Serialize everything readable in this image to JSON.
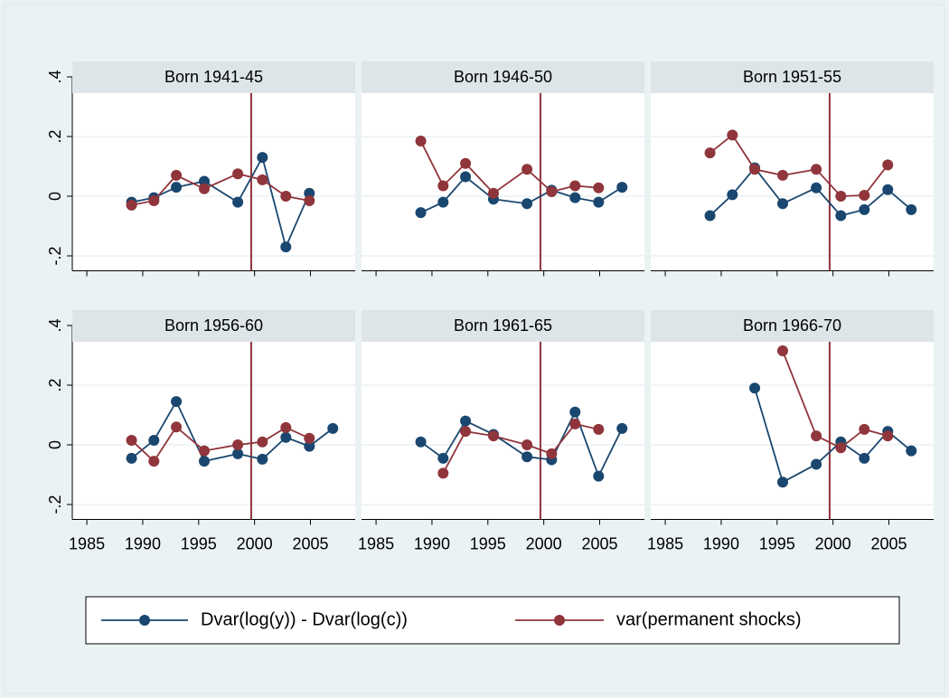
{
  "chart_data": [
    {
      "type": "line",
      "title": "Born 1941-45",
      "x": [
        1989,
        1991,
        1993,
        1995.5,
        1998.5,
        2000.7,
        2002.8,
        2004.9
      ],
      "series": [
        {
          "name": "Dvar(log(y)) - Dvar(log(c))",
          "color": "#1a476f",
          "values": [
            -0.02,
            -0.005,
            0.03,
            0.05,
            -0.02,
            0.13,
            -0.17,
            0.01
          ]
        },
        {
          "name": "var(permanent shocks)",
          "color": "#90353b",
          "values": [
            -0.03,
            -0.015,
            0.07,
            0.025,
            0.075,
            0.055,
            0.0,
            -0.015
          ]
        }
      ],
      "xlim": [
        1983.7,
        2009
      ],
      "ylim": [
        -0.25,
        0.4
      ],
      "xticks": [
        1985,
        1990,
        1995,
        2000,
        2005
      ],
      "yticks": [
        {
          "value": -0.2,
          "label": "-.2"
        },
        0,
        {
          "value": 0.2,
          "label": ".2"
        },
        {
          "value": 0.4,
          "label": ".4"
        }
      ],
      "xline": 1999.7,
      "grid": true
    },
    {
      "type": "line",
      "title": "Born 1946-50",
      "x": [
        1989,
        1991,
        1993,
        1995.5,
        1998.5,
        2000.7,
        2002.8,
        2004.9,
        2007
      ],
      "series": [
        {
          "name": "Dvar(log(y)) - Dvar(log(c))",
          "color": "#1a476f",
          "values": [
            -0.055,
            -0.02,
            0.065,
            -0.01,
            -0.025,
            0.02,
            -0.005,
            -0.02,
            0.03
          ]
        },
        {
          "name": "var(permanent shocks)",
          "color": "#90353b",
          "values": [
            0.185,
            0.035,
            0.11,
            0.01,
            0.09,
            0.015,
            0.035,
            0.028,
            null
          ]
        }
      ],
      "xlim": [
        1983.7,
        2009
      ],
      "ylim": [
        -0.25,
        0.4
      ],
      "xticks": [
        1985,
        1990,
        1995,
        2000,
        2005
      ],
      "yticks": [
        {
          "value": -0.2,
          "label": "-.2"
        },
        0,
        {
          "value": 0.2,
          "label": ".2"
        },
        {
          "value": 0.4,
          "label": ".4"
        }
      ],
      "xline": 1999.7,
      "grid": true
    },
    {
      "type": "line",
      "title": "Born 1951-55",
      "x": [
        1989,
        1991,
        1993,
        1995.5,
        1998.5,
        2000.7,
        2002.8,
        2004.9,
        2007
      ],
      "series": [
        {
          "name": "Dvar(log(y)) - Dvar(log(c))",
          "color": "#1a476f",
          "values": [
            -0.065,
            0.005,
            0.095,
            -0.025,
            0.028,
            -0.065,
            -0.045,
            0.022,
            -0.045
          ]
        },
        {
          "name": "var(permanent shocks)",
          "color": "#90353b",
          "values": [
            0.145,
            0.205,
            0.09,
            0.07,
            0.09,
            0.0,
            0.003,
            0.105,
            null
          ]
        }
      ],
      "xlim": [
        1983.7,
        2009
      ],
      "ylim": [
        -0.25,
        0.4
      ],
      "xticks": [
        1985,
        1990,
        1995,
        2000,
        2005
      ],
      "yticks": [
        {
          "value": -0.2,
          "label": "-.2"
        },
        0,
        {
          "value": 0.2,
          "label": ".2"
        },
        {
          "value": 0.4,
          "label": ".4"
        }
      ],
      "xline": 1999.7,
      "grid": true
    },
    {
      "type": "line",
      "title": "Born 1956-60",
      "x": [
        1989,
        1991,
        1993,
        1995.5,
        1998.5,
        2000.7,
        2002.8,
        2004.9,
        2007
      ],
      "series": [
        {
          "name": "Dvar(log(y)) - Dvar(log(c))",
          "color": "#1a476f",
          "values": [
            -0.045,
            0.015,
            0.145,
            -0.055,
            -0.03,
            -0.048,
            0.025,
            -0.005,
            0.055
          ]
        },
        {
          "name": "var(permanent shocks)",
          "color": "#90353b",
          "values": [
            0.015,
            -0.055,
            0.06,
            -0.02,
            0.0,
            0.01,
            0.058,
            0.022,
            null
          ]
        }
      ],
      "xlim": [
        1983.7,
        2009
      ],
      "ylim": [
        -0.25,
        0.4
      ],
      "xticks": [
        1985,
        1990,
        1995,
        2000,
        2005
      ],
      "yticks": [
        {
          "value": -0.2,
          "label": "-.2"
        },
        0,
        {
          "value": 0.2,
          "label": ".2"
        },
        {
          "value": 0.4,
          "label": ".4"
        }
      ],
      "xline": 1999.7,
      "grid": true
    },
    {
      "type": "line",
      "title": "Born 1961-65",
      "x": [
        1989,
        1991,
        1993,
        1995.5,
        1998.5,
        2000.7,
        2002.8,
        2004.9,
        2007
      ],
      "series": [
        {
          "name": "Dvar(log(y)) - Dvar(log(c))",
          "color": "#1a476f",
          "values": [
            0.01,
            -0.045,
            0.08,
            0.035,
            -0.04,
            -0.05,
            0.11,
            -0.105,
            0.055
          ]
        },
        {
          "name": "var(permanent shocks)",
          "color": "#90353b",
          "values": [
            null,
            -0.095,
            0.045,
            0.03,
            0.0,
            -0.03,
            0.07,
            0.052,
            null
          ]
        }
      ],
      "xlim": [
        1983.7,
        2009
      ],
      "ylim": [
        -0.25,
        0.4
      ],
      "xticks": [
        1985,
        1990,
        1995,
        2000,
        2005
      ],
      "yticks": [
        {
          "value": -0.2,
          "label": "-.2"
        },
        0,
        {
          "value": 0.2,
          "label": ".2"
        },
        {
          "value": 0.4,
          "label": ".4"
        }
      ],
      "xline": 1999.7,
      "grid": true
    },
    {
      "type": "line",
      "title": "Born 1966-70",
      "x": [
        1993,
        1995.5,
        1998.5,
        2000.7,
        2002.8,
        2004.9,
        2007
      ],
      "series": [
        {
          "name": "Dvar(log(y)) - Dvar(log(c))",
          "color": "#1a476f",
          "values": [
            0.19,
            -0.125,
            -0.065,
            0.01,
            -0.045,
            0.045,
            -0.02
          ]
        },
        {
          "name": "var(permanent shocks)",
          "color": "#90353b",
          "values": [
            null,
            0.315,
            0.03,
            -0.01,
            0.052,
            0.03,
            null
          ]
        }
      ],
      "xlim": [
        1983.7,
        2009
      ],
      "ylim": [
        -0.25,
        0.4
      ],
      "xticks": [
        1985,
        1990,
        1995,
        2000,
        2005
      ],
      "yticks": [
        {
          "value": -0.2,
          "label": "-.2"
        },
        0,
        {
          "value": 0.2,
          "label": ".2"
        },
        {
          "value": 0.4,
          "label": ".4"
        }
      ],
      "xline": 1999.7,
      "grid": true
    }
  ]
}
